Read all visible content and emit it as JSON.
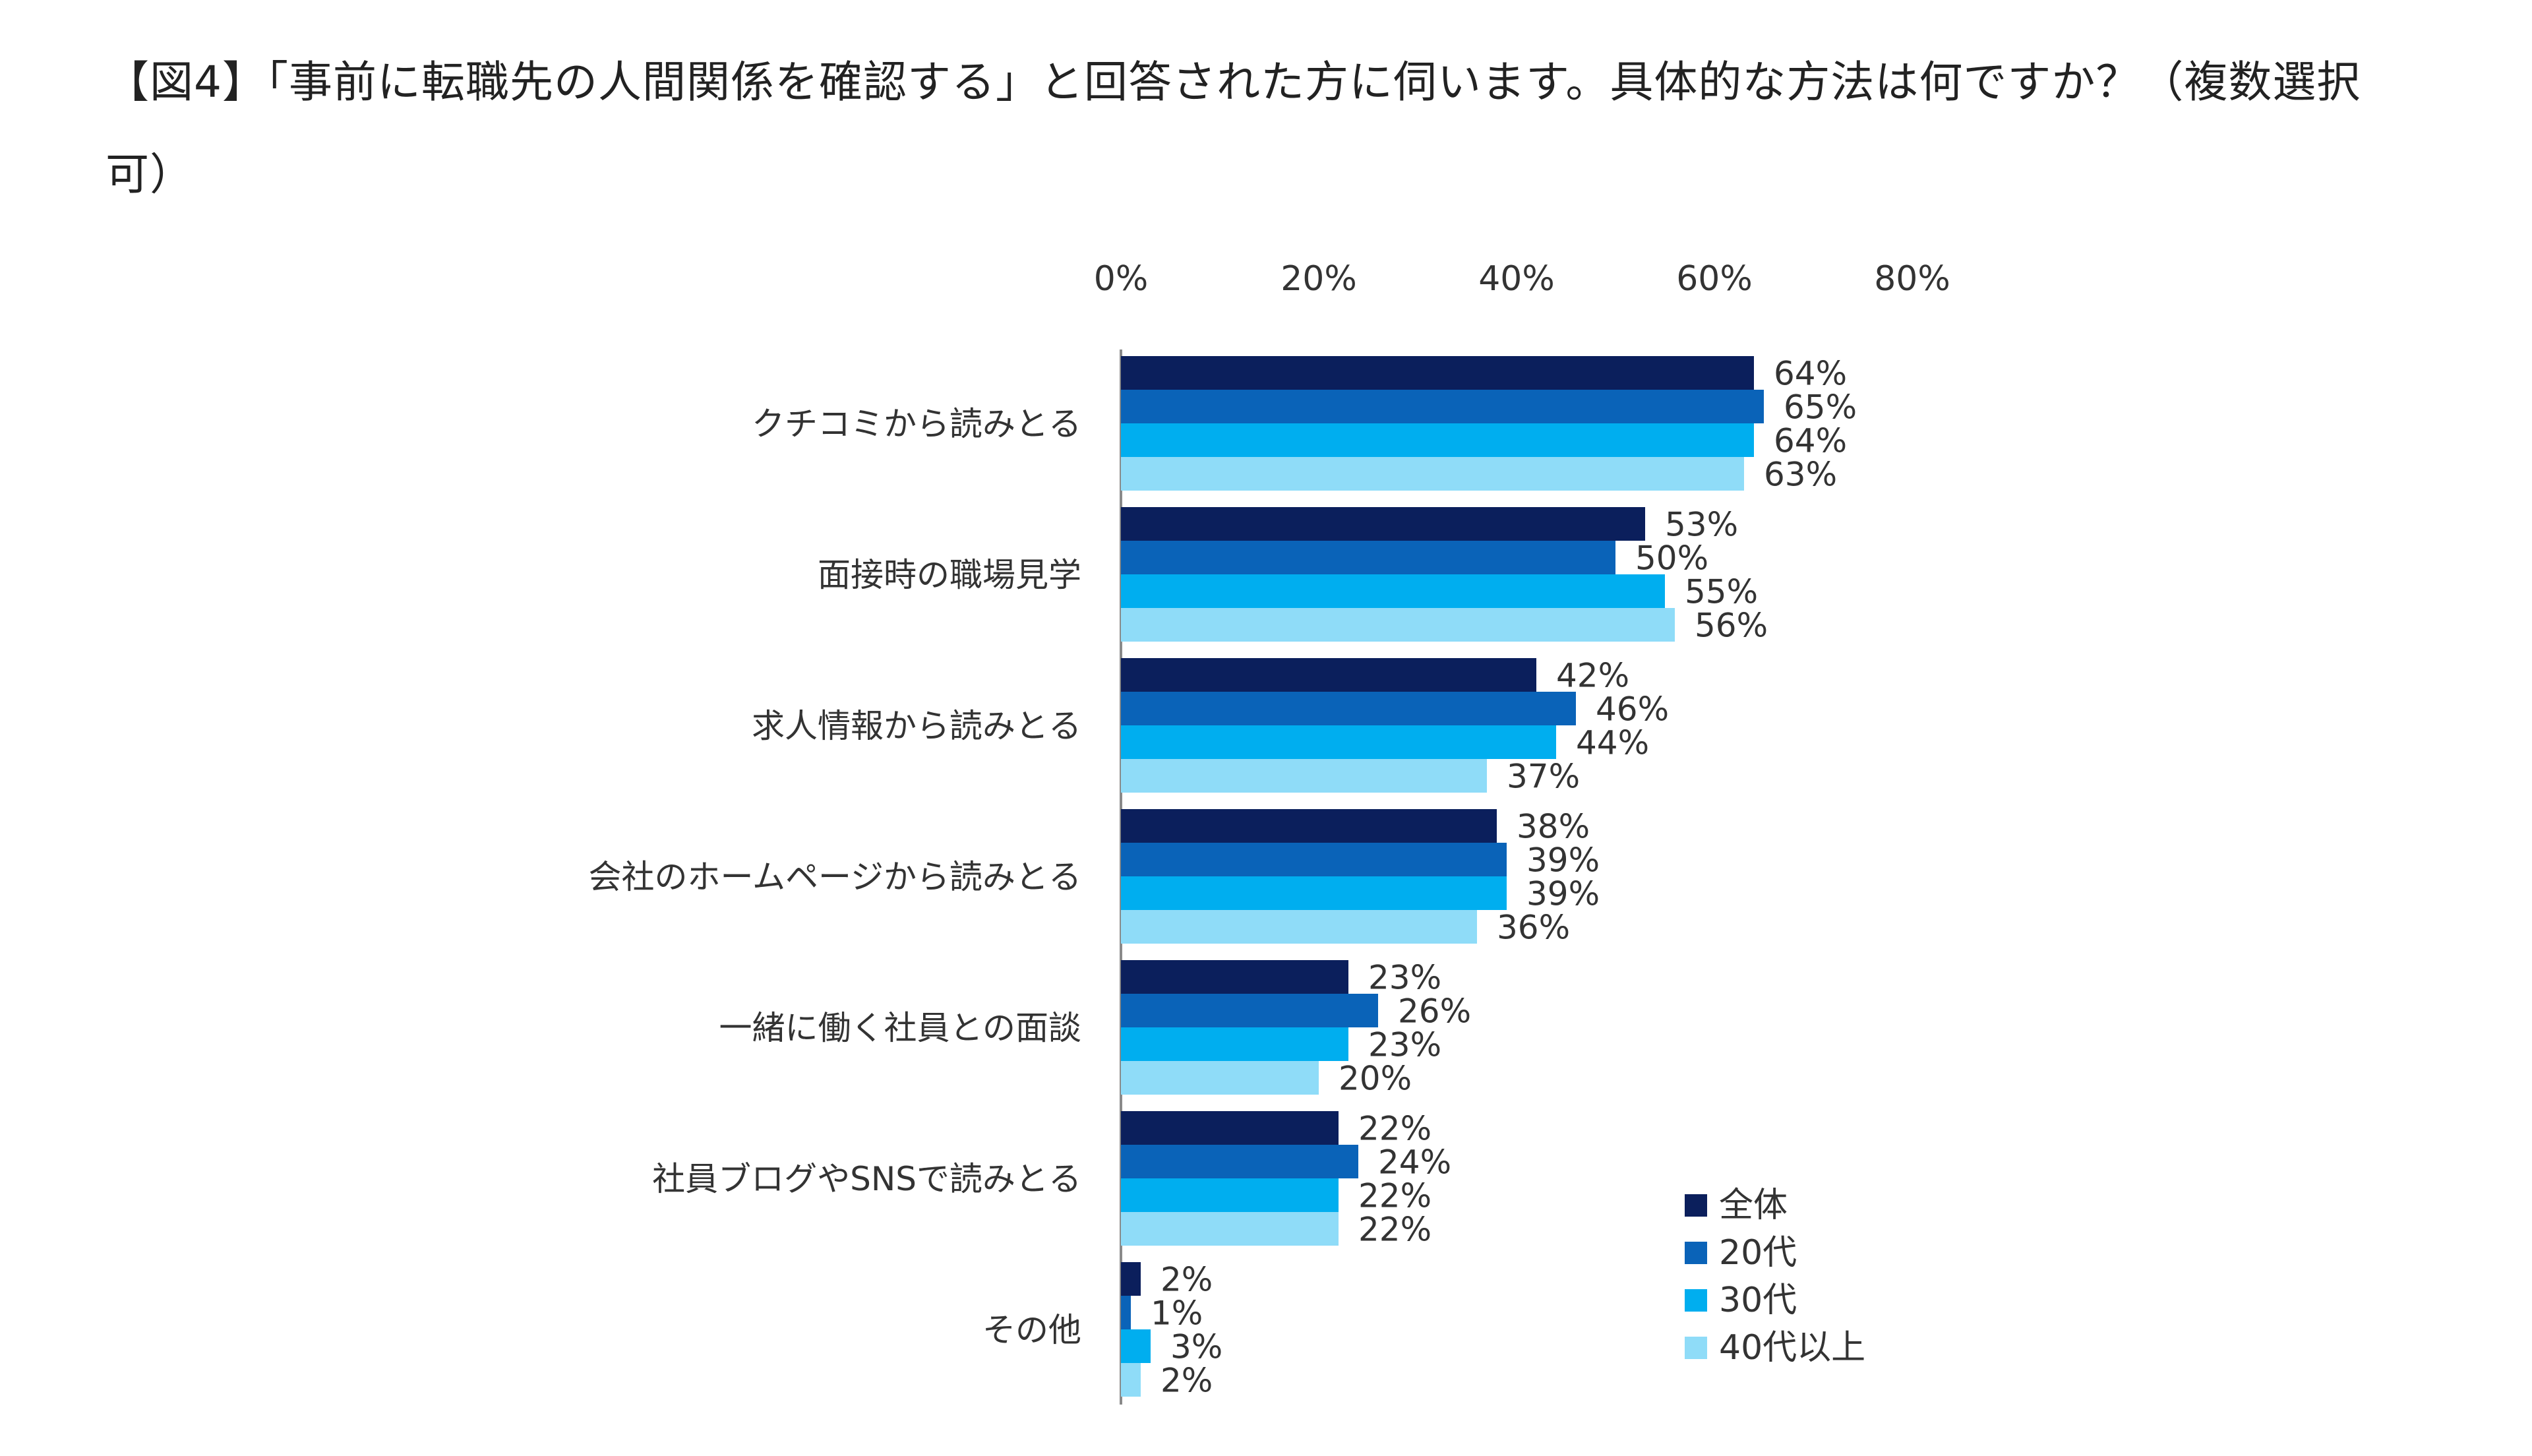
{
  "title": "【図4】「事前に転職先の人間関係を確認する」と回答された方に伺います。具体的な方法は何ですか？（複数選択可）",
  "chart_data": {
    "type": "bar",
    "orientation": "horizontal",
    "title": "【図4】「事前に転職先の人間関係を確認する」と回答された方に伺います。具体的な方法は何ですか？（複数選択可）",
    "xlabel": "",
    "ylabel": "",
    "xlim": [
      0,
      80
    ],
    "x_ticks": [
      0,
      20,
      40,
      60,
      80
    ],
    "x_tick_labels": [
      "0%",
      "20%",
      "40%",
      "60%",
      "80%"
    ],
    "x_axis_position": "top",
    "value_suffix": "%",
    "grid": false,
    "legend_position": "bottom-right",
    "categories": [
      "クチコミから読みとる",
      "面接時の職場見学",
      "求人情報から読みとる",
      "会社のホームページから読みとる",
      "一緒に働く社員との面談",
      "社員ブログやSNSで読みとる",
      "その他"
    ],
    "series": [
      {
        "name": "全体",
        "color": "#0b1f5c",
        "values": [
          64,
          53,
          42,
          38,
          23,
          22,
          2
        ]
      },
      {
        "name": "20代",
        "color": "#0a63b8",
        "values": [
          65,
          50,
          46,
          39,
          26,
          24,
          1
        ]
      },
      {
        "name": "30代",
        "color": "#00aeef",
        "values": [
          64,
          55,
          44,
          39,
          23,
          22,
          3
        ]
      },
      {
        "name": "40代以上",
        "color": "#8fdcf8",
        "values": [
          63,
          56,
          37,
          36,
          20,
          22,
          2
        ]
      }
    ]
  }
}
